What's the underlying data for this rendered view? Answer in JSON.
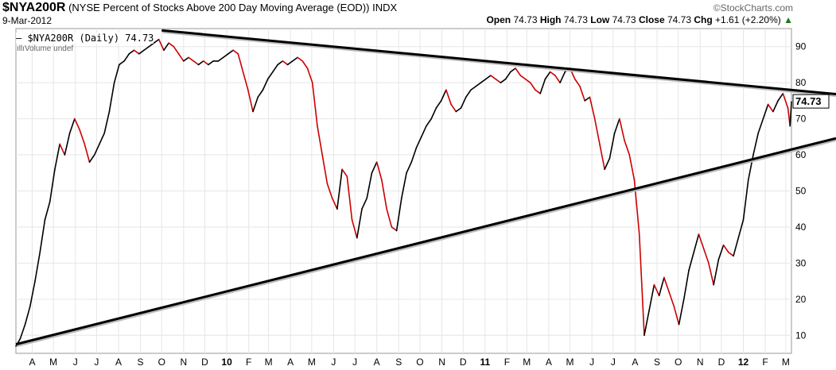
{
  "header": {
    "symbol": "$NYA200R",
    "description": "(NYSE Percent of Stocks Above 200 Day Moving Average (EOD)) INDX",
    "brand": "©StockCharts.com",
    "date": "9-Mar-2012",
    "open_label": "Open",
    "open": "74.73",
    "high_label": "High",
    "high": "74.73",
    "low_label": "Low",
    "low": "74.73",
    "close_label": "Close",
    "close": "74.73",
    "chg_label": "Chg",
    "chg": "+1.61 (+2.20%)",
    "up_arrow": "▲"
  },
  "legend": {
    "series_label": "— $NYA200R (Daily) 74.73",
    "volume_label": "Volume undef"
  },
  "price_tag": "74.73",
  "colors": {
    "line_up": "#000000",
    "line_down": "#cc0000",
    "trendline": "#000000",
    "grid": "#e6e6e6",
    "positive": "#1a7a1a"
  },
  "chart_data": {
    "type": "line",
    "y_axis": "right",
    "ylim": [
      5,
      95
    ],
    "yticks": [
      10,
      20,
      30,
      40,
      50,
      60,
      70,
      80,
      90
    ],
    "xlim": [
      "2009-03-09",
      "2012-03-09"
    ],
    "x_ticks": [
      {
        "date": "2009-04-01",
        "label": "A"
      },
      {
        "date": "2009-05-01",
        "label": "M"
      },
      {
        "date": "2009-06-01",
        "label": "J"
      },
      {
        "date": "2009-07-01",
        "label": "J"
      },
      {
        "date": "2009-08-01",
        "label": "A"
      },
      {
        "date": "2009-09-01",
        "label": "S"
      },
      {
        "date": "2009-10-01",
        "label": "O"
      },
      {
        "date": "2009-11-01",
        "label": "N"
      },
      {
        "date": "2009-12-01",
        "label": "D"
      },
      {
        "date": "2010-01-01",
        "label": "10",
        "bold": true
      },
      {
        "date": "2010-02-01",
        "label": "F"
      },
      {
        "date": "2010-03-01",
        "label": "M"
      },
      {
        "date": "2010-04-01",
        "label": "A"
      },
      {
        "date": "2010-05-01",
        "label": "M"
      },
      {
        "date": "2010-06-01",
        "label": "J"
      },
      {
        "date": "2010-07-01",
        "label": "J"
      },
      {
        "date": "2010-08-01",
        "label": "A"
      },
      {
        "date": "2010-09-01",
        "label": "S"
      },
      {
        "date": "2010-10-01",
        "label": "O"
      },
      {
        "date": "2010-11-01",
        "label": "N"
      },
      {
        "date": "2010-12-01",
        "label": "D"
      },
      {
        "date": "2011-01-01",
        "label": "11",
        "bold": true
      },
      {
        "date": "2011-02-01",
        "label": "F"
      },
      {
        "date": "2011-03-01",
        "label": "M"
      },
      {
        "date": "2011-04-01",
        "label": "A"
      },
      {
        "date": "2011-05-01",
        "label": "M"
      },
      {
        "date": "2011-06-01",
        "label": "J"
      },
      {
        "date": "2011-07-01",
        "label": "J"
      },
      {
        "date": "2011-08-01",
        "label": "A"
      },
      {
        "date": "2011-09-01",
        "label": "S"
      },
      {
        "date": "2011-10-01",
        "label": "O"
      },
      {
        "date": "2011-11-01",
        "label": "N"
      },
      {
        "date": "2011-12-01",
        "label": "D"
      },
      {
        "date": "2012-01-01",
        "label": "12",
        "bold": true
      },
      {
        "date": "2012-02-01",
        "label": "F"
      },
      {
        "date": "2012-03-01",
        "label": "M"
      }
    ],
    "series": [
      {
        "name": "$NYA200R (Daily)",
        "points": [
          [
            "2009-03-09",
            7
          ],
          [
            "2009-03-15",
            9
          ],
          [
            "2009-03-22",
            13
          ],
          [
            "2009-03-29",
            18
          ],
          [
            "2009-04-05",
            25
          ],
          [
            "2009-04-12",
            33
          ],
          [
            "2009-04-19",
            42
          ],
          [
            "2009-04-26",
            47
          ],
          [
            "2009-05-03",
            56
          ],
          [
            "2009-05-10",
            63
          ],
          [
            "2009-05-17",
            60
          ],
          [
            "2009-05-24",
            66
          ],
          [
            "2009-05-31",
            70
          ],
          [
            "2009-06-07",
            67
          ],
          [
            "2009-06-14",
            63
          ],
          [
            "2009-06-21",
            58
          ],
          [
            "2009-06-28",
            60
          ],
          [
            "2009-07-05",
            63
          ],
          [
            "2009-07-12",
            66
          ],
          [
            "2009-07-19",
            72
          ],
          [
            "2009-07-26",
            80
          ],
          [
            "2009-08-02",
            85
          ],
          [
            "2009-08-09",
            86
          ],
          [
            "2009-08-16",
            88
          ],
          [
            "2009-08-23",
            89
          ],
          [
            "2009-08-30",
            88
          ],
          [
            "2009-09-06",
            89
          ],
          [
            "2009-09-13",
            90
          ],
          [
            "2009-09-20",
            91
          ],
          [
            "2009-09-27",
            92
          ],
          [
            "2009-10-04",
            89
          ],
          [
            "2009-10-11",
            91
          ],
          [
            "2009-10-18",
            90
          ],
          [
            "2009-10-25",
            88
          ],
          [
            "2009-11-01",
            86
          ],
          [
            "2009-11-08",
            87
          ],
          [
            "2009-11-15",
            86
          ],
          [
            "2009-11-22",
            85
          ],
          [
            "2009-11-29",
            86
          ],
          [
            "2009-12-06",
            85
          ],
          [
            "2009-12-13",
            86
          ],
          [
            "2009-12-20",
            86
          ],
          [
            "2009-12-27",
            87
          ],
          [
            "2010-01-03",
            88
          ],
          [
            "2010-01-10",
            89
          ],
          [
            "2010-01-17",
            88
          ],
          [
            "2010-01-24",
            83
          ],
          [
            "2010-01-31",
            78
          ],
          [
            "2010-02-07",
            72
          ],
          [
            "2010-02-14",
            76
          ],
          [
            "2010-02-21",
            78
          ],
          [
            "2010-02-28",
            81
          ],
          [
            "2010-03-07",
            83
          ],
          [
            "2010-03-14",
            85
          ],
          [
            "2010-03-21",
            86
          ],
          [
            "2010-03-28",
            85
          ],
          [
            "2010-04-04",
            86
          ],
          [
            "2010-04-11",
            87
          ],
          [
            "2010-04-18",
            86
          ],
          [
            "2010-04-25",
            84
          ],
          [
            "2010-05-02",
            80
          ],
          [
            "2010-05-09",
            68
          ],
          [
            "2010-05-16",
            60
          ],
          [
            "2010-05-23",
            52
          ],
          [
            "2010-05-30",
            48
          ],
          [
            "2010-06-06",
            45
          ],
          [
            "2010-06-13",
            56
          ],
          [
            "2010-06-20",
            54
          ],
          [
            "2010-06-27",
            42
          ],
          [
            "2010-07-04",
            37
          ],
          [
            "2010-07-11",
            45
          ],
          [
            "2010-07-18",
            48
          ],
          [
            "2010-07-25",
            55
          ],
          [
            "2010-08-01",
            58
          ],
          [
            "2010-08-08",
            53
          ],
          [
            "2010-08-15",
            45
          ],
          [
            "2010-08-22",
            40
          ],
          [
            "2010-08-29",
            39
          ],
          [
            "2010-09-05",
            48
          ],
          [
            "2010-09-12",
            55
          ],
          [
            "2010-09-19",
            58
          ],
          [
            "2010-09-26",
            62
          ],
          [
            "2010-10-03",
            65
          ],
          [
            "2010-10-10",
            68
          ],
          [
            "2010-10-17",
            70
          ],
          [
            "2010-10-24",
            73
          ],
          [
            "2010-10-31",
            75
          ],
          [
            "2010-11-07",
            78
          ],
          [
            "2010-11-14",
            74
          ],
          [
            "2010-11-21",
            72
          ],
          [
            "2010-11-28",
            73
          ],
          [
            "2010-12-05",
            76
          ],
          [
            "2010-12-12",
            78
          ],
          [
            "2010-12-19",
            79
          ],
          [
            "2010-12-26",
            80
          ],
          [
            "2011-01-02",
            81
          ],
          [
            "2011-01-09",
            82
          ],
          [
            "2011-01-16",
            81
          ],
          [
            "2011-01-23",
            80
          ],
          [
            "2011-01-30",
            81
          ],
          [
            "2011-02-06",
            83
          ],
          [
            "2011-02-13",
            84
          ],
          [
            "2011-02-20",
            82
          ],
          [
            "2011-02-27",
            81
          ],
          [
            "2011-03-06",
            80
          ],
          [
            "2011-03-13",
            78
          ],
          [
            "2011-03-20",
            77
          ],
          [
            "2011-03-27",
            81
          ],
          [
            "2011-04-03",
            83
          ],
          [
            "2011-04-10",
            82
          ],
          [
            "2011-04-17",
            80
          ],
          [
            "2011-04-24",
            83
          ],
          [
            "2011-05-01",
            84
          ],
          [
            "2011-05-08",
            81
          ],
          [
            "2011-05-15",
            79
          ],
          [
            "2011-05-22",
            75
          ],
          [
            "2011-05-29",
            76
          ],
          [
            "2011-06-05",
            70
          ],
          [
            "2011-06-12",
            63
          ],
          [
            "2011-06-19",
            56
          ],
          [
            "2011-06-26",
            59
          ],
          [
            "2011-07-03",
            66
          ],
          [
            "2011-07-10",
            70
          ],
          [
            "2011-07-17",
            64
          ],
          [
            "2011-07-24",
            60
          ],
          [
            "2011-07-31",
            53
          ],
          [
            "2011-08-07",
            38
          ],
          [
            "2011-08-14",
            10
          ],
          [
            "2011-08-21",
            17
          ],
          [
            "2011-08-28",
            24
          ],
          [
            "2011-09-04",
            21
          ],
          [
            "2011-09-11",
            26
          ],
          [
            "2011-09-18",
            22
          ],
          [
            "2011-09-25",
            18
          ],
          [
            "2011-10-02",
            13
          ],
          [
            "2011-10-09",
            20
          ],
          [
            "2011-10-16",
            28
          ],
          [
            "2011-10-23",
            33
          ],
          [
            "2011-10-30",
            38
          ],
          [
            "2011-11-06",
            34
          ],
          [
            "2011-11-13",
            30
          ],
          [
            "2011-11-20",
            24
          ],
          [
            "2011-11-27",
            31
          ],
          [
            "2011-12-04",
            35
          ],
          [
            "2011-12-11",
            33
          ],
          [
            "2011-12-18",
            32
          ],
          [
            "2011-12-25",
            37
          ],
          [
            "2012-01-01",
            42
          ],
          [
            "2012-01-08",
            53
          ],
          [
            "2012-01-15",
            60
          ],
          [
            "2012-01-22",
            66
          ],
          [
            "2012-01-29",
            70
          ],
          [
            "2012-02-05",
            74
          ],
          [
            "2012-02-12",
            72
          ],
          [
            "2012-02-19",
            75
          ],
          [
            "2012-02-26",
            77
          ],
          [
            "2012-03-04",
            73
          ],
          [
            "2012-03-07",
            68
          ],
          [
            "2012-03-09",
            74.73
          ]
        ]
      }
    ],
    "trendlines": [
      {
        "points": [
          [
            "2009-03-09",
            7.5
          ],
          [
            "2012-03-09",
            61.5
          ]
        ]
      },
      {
        "points": [
          [
            "2009-10-01",
            94.5
          ],
          [
            "2012-03-09",
            78
          ]
        ]
      }
    ],
    "grid": true
  }
}
